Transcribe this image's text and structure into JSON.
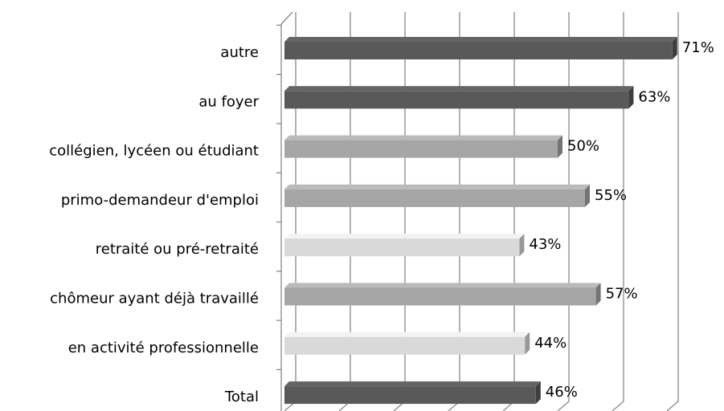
{
  "chart_data": {
    "type": "bar",
    "orientation": "horizontal",
    "categories": [
      "autre",
      "au foyer",
      "collégien, lycéen ou étudiant",
      "primo-demandeur d'emploi",
      "retraité ou pré-retraité",
      "chômeur ayant déjà travaillé",
      "en activité professionnelle",
      "Total"
    ],
    "values": [
      71,
      63,
      50,
      55,
      43,
      57,
      44,
      46
    ],
    "value_labels": [
      "71%",
      "63%",
      "50%",
      "55%",
      "43%",
      "57%",
      "44%",
      "46%"
    ],
    "colors": [
      "#595959",
      "#595959",
      "#a6a6a6",
      "#a6a6a6",
      "#d9d9d9",
      "#a6a6a6",
      "#d9d9d9",
      "#595959"
    ],
    "xlim": [
      0,
      70
    ],
    "xticks": [
      0,
      10,
      20,
      30,
      40,
      50,
      60,
      70
    ],
    "grid": true
  }
}
